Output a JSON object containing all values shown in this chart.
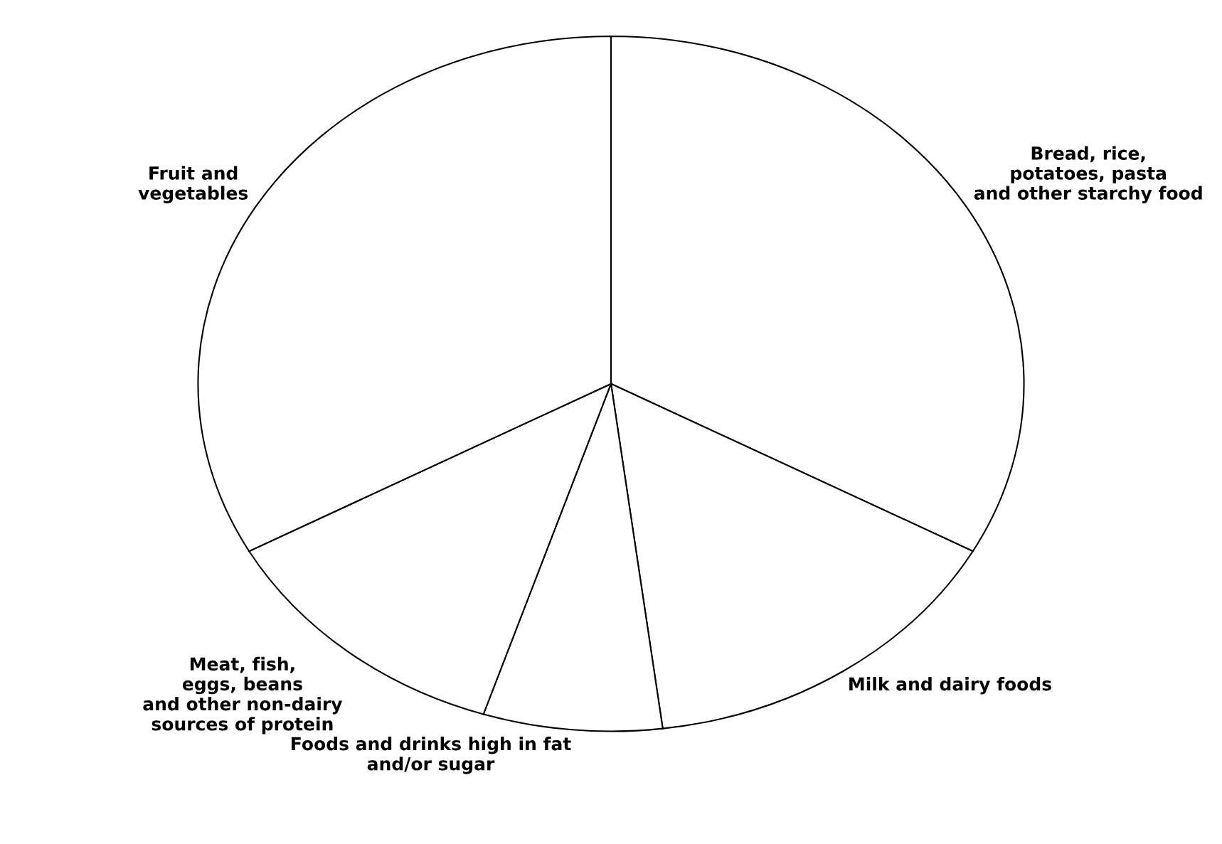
{
  "chart_data": {
    "type": "pie",
    "categories": [
      "Bread, rice,\npotatoes, pasta\nand other starchy food",
      "Milk and dairy foods",
      "Foods and drinks high in fat\nand/or sugar",
      "Meat, fish,\neggs, beans\nand other non-dairy\nsources of protein",
      "Fruit and\nvegetables"
    ],
    "values": [
      33,
      15,
      7,
      12,
      33
    ],
    "colors": [
      "#ffffff",
      "#ffffff",
      "#ffffff",
      "#ffffff",
      "#ffffff"
    ]
  }
}
